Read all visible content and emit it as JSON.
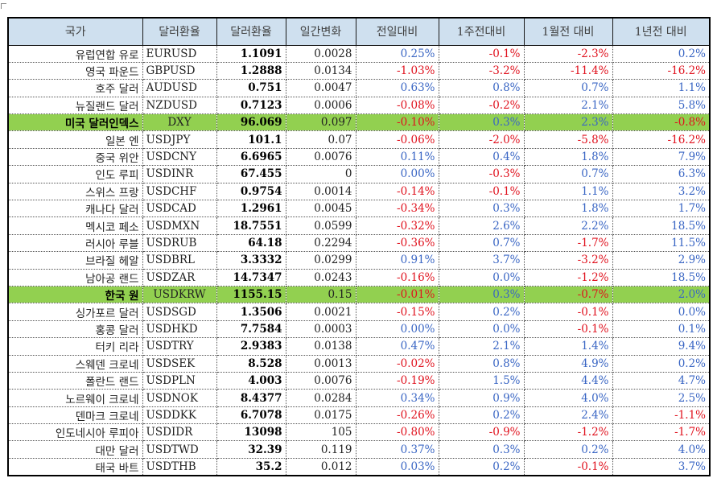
{
  "headers": [
    "국가",
    "달러환율",
    "달러환율",
    "일간변화",
    "전일대비",
    "1주전대비",
    "1월전 대비",
    "1년전 대비"
  ],
  "rows": [
    {
      "name": "유럽연합 유로",
      "code": "EURUSD",
      "rate": "1.1091",
      "chg": "0.0028",
      "d1": "0.25%",
      "w1": "-0.1%",
      "m1": "-2.3%",
      "y1": "0.2%",
      "hl": false
    },
    {
      "name": "영국 파운드",
      "code": "GBPUSD",
      "rate": "1.2888",
      "chg": "0.0134",
      "d1": "-1.03%",
      "w1": "-3.2%",
      "m1": "-11.4%",
      "y1": "-16.2%",
      "hl": false
    },
    {
      "name": "호주 달러",
      "code": "AUDUSD",
      "rate": "0.751",
      "chg": "0.0047",
      "d1": "0.63%",
      "w1": "0.8%",
      "m1": "0.7%",
      "y1": "1.1%",
      "hl": false
    },
    {
      "name": "뉴질랜드 달러",
      "code": "NZDUSD",
      "rate": "0.7123",
      "chg": "0.0006",
      "d1": "-0.08%",
      "w1": "-0.2%",
      "m1": "2.1%",
      "y1": "5.8%",
      "hl": false
    },
    {
      "name": "미국 달러인덱스",
      "code": "DXY",
      "rate": "96.069",
      "chg": "0.097",
      "d1": "-0.10%",
      "w1": "0.3%",
      "m1": "2.3%",
      "y1": "-0.8%",
      "hl": true
    },
    {
      "name": "일본 엔",
      "code": "USDJPY",
      "rate": "101.1",
      "chg": "0.07",
      "d1": "-0.06%",
      "w1": "-2.0%",
      "m1": "-5.8%",
      "y1": "-16.2%",
      "hl": false
    },
    {
      "name": "중국 위안",
      "code": "USDCNY",
      "rate": "6.6965",
      "chg": "0.0076",
      "d1": "0.11%",
      "w1": "0.4%",
      "m1": "1.8%",
      "y1": "7.9%",
      "hl": false
    },
    {
      "name": "인도 루피",
      "code": "USDINR",
      "rate": "67.455",
      "chg": "0",
      "d1": "0.00%",
      "w1": "-0.3%",
      "m1": "0.7%",
      "y1": "6.3%",
      "hl": false
    },
    {
      "name": "스위스 프랑",
      "code": "USDCHF",
      "rate": "0.9754",
      "chg": "0.0014",
      "d1": "-0.14%",
      "w1": "-0.1%",
      "m1": "1.1%",
      "y1": "3.2%",
      "hl": false
    },
    {
      "name": "캐나다 달러",
      "code": "USDCAD",
      "rate": "1.2961",
      "chg": "0.0045",
      "d1": "-0.34%",
      "w1": "0.3%",
      "m1": "1.8%",
      "y1": "1.7%",
      "hl": false
    },
    {
      "name": "멕시코 페소",
      "code": "USDMXN",
      "rate": "18.7551",
      "chg": "0.0599",
      "d1": "-0.32%",
      "w1": "2.6%",
      "m1": "2.2%",
      "y1": "18.5%",
      "hl": false
    },
    {
      "name": "러시아 루블",
      "code": "USDRUB",
      "rate": "64.18",
      "chg": "0.2294",
      "d1": "-0.36%",
      "w1": "0.7%",
      "m1": "-1.7%",
      "y1": "11.5%",
      "hl": false
    },
    {
      "name": "브라질 헤알",
      "code": "USDBRL",
      "rate": "3.3332",
      "chg": "0.0299",
      "d1": "0.91%",
      "w1": "3.7%",
      "m1": "-3.2%",
      "y1": "2.9%",
      "hl": false
    },
    {
      "name": "남아공 랜드",
      "code": "USDZAR",
      "rate": "14.7347",
      "chg": "0.0243",
      "d1": "-0.16%",
      "w1": "0.0%",
      "m1": "-1.2%",
      "y1": "18.5%",
      "hl": false
    },
    {
      "name": "한국 원",
      "code": "USDKRW",
      "rate": "1155.15",
      "chg": "0.15",
      "d1": "-0.01%",
      "w1": "0.3%",
      "m1": "-0.7%",
      "y1": "2.0%",
      "hl": true
    },
    {
      "name": "싱가포르 달러",
      "code": "USDSGD",
      "rate": "1.3506",
      "chg": "0.0021",
      "d1": "-0.15%",
      "w1": "0.2%",
      "m1": "-0.1%",
      "y1": "0.0%",
      "hl": false
    },
    {
      "name": "홍콩 달러",
      "code": "USDHKD",
      "rate": "7.7584",
      "chg": "0.0003",
      "d1": "0.00%",
      "w1": "0.0%",
      "m1": "-0.1%",
      "y1": "0.1%",
      "hl": false
    },
    {
      "name": "터키 리라",
      "code": "USDTRY",
      "rate": "2.9383",
      "chg": "0.0138",
      "d1": "0.47%",
      "w1": "2.1%",
      "m1": "1.4%",
      "y1": "9.4%",
      "hl": false
    },
    {
      "name": "스웨덴 크로네",
      "code": "USDSEK",
      "rate": "8.528",
      "chg": "0.0013",
      "d1": "-0.02%",
      "w1": "0.8%",
      "m1": "4.9%",
      "y1": "0.2%",
      "hl": false
    },
    {
      "name": "폴란드 랜드",
      "code": "USDPLN",
      "rate": "4.003",
      "chg": "0.0076",
      "d1": "-0.19%",
      "w1": "1.5%",
      "m1": "4.4%",
      "y1": "4.7%",
      "hl": false
    },
    {
      "name": "노르웨이 크로네",
      "code": "USDNOK",
      "rate": "8.4377",
      "chg": "0.0284",
      "d1": "0.34%",
      "w1": "0.9%",
      "m1": "4.0%",
      "y1": "2.5%",
      "hl": false
    },
    {
      "name": "덴마크 크로네",
      "code": "USDDKK",
      "rate": "6.7078",
      "chg": "0.0175",
      "d1": "-0.26%",
      "w1": "0.2%",
      "m1": "2.4%",
      "y1": "-1.1%",
      "hl": false
    },
    {
      "name": "인도네시아 루피아",
      "code": "USDIDR",
      "rate": "13098",
      "chg": "105",
      "d1": "-0.80%",
      "w1": "-0.9%",
      "m1": "-1.2%",
      "y1": "-1.7%",
      "hl": false
    },
    {
      "name": "대만 달러",
      "code": "USDTWD",
      "rate": "32.39",
      "chg": "0.119",
      "d1": "0.37%",
      "w1": "0.3%",
      "m1": "0.2%",
      "y1": "4.0%",
      "hl": false
    },
    {
      "name": "태국 바트",
      "code": "USDTHB",
      "rate": "35.2",
      "chg": "0.012",
      "d1": "0.03%",
      "w1": "0.2%",
      "m1": "-0.1%",
      "y1": "3.7%",
      "hl": false
    }
  ],
  "colors": {
    "header_bg": "#cfe0ef",
    "highlight_bg": "#92d050",
    "positive": "#3a66c4",
    "negative": "#e0121e"
  }
}
